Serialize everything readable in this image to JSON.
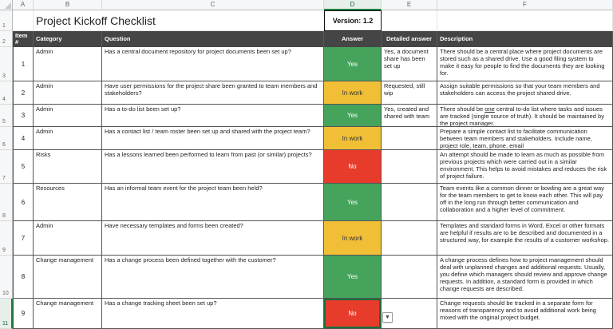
{
  "title": "Project Kickoff Checklist",
  "version_label": "Version: 1.2",
  "column_letters": [
    "A",
    "B",
    "C",
    "D",
    "E",
    "F"
  ],
  "selected_column": "D",
  "row1_number": "1",
  "row2_number": "2",
  "table_header": {
    "item": "Item #",
    "category": "Category",
    "question": "Question",
    "answer": "Answer",
    "detailed": "Detailed answer",
    "description": "Description"
  },
  "answer_colors": {
    "yes": "#46a35c",
    "in_work": "#f1bf35",
    "no": "#e73b2b"
  },
  "selection_color": "#1e7e3e",
  "dropdown_glyph": "▼",
  "rows": [
    {
      "row_num": "3",
      "item": "1",
      "category": "Admin",
      "question": "Has a central document repository for project documents been set up?",
      "answer": "Yes",
      "answer_type": "yes",
      "detailed": "Yes, a document share has been set up",
      "description": "There should be a central place where project documents are stored such as a shared drive. Use a good filing system to make it easy for people to find the documents they are looking for."
    },
    {
      "row_num": "4",
      "item": "2",
      "category": "Admin",
      "question": "Have user permissions for the project share been granted to team members and stakeholders?",
      "answer": "In work",
      "answer_type": "in_work",
      "detailed": "Requested, still wip",
      "description": "Assign suitable permissions so that your team members and stakeholders can access the project shared drive."
    },
    {
      "row_num": "5",
      "item": "3",
      "category": "Admin",
      "question": "Has a to-do list been set up?",
      "answer": "Yes",
      "answer_type": "yes",
      "detailed": "Yes, created and shared with team",
      "description": "There should be one central to-do list where tasks and issues are tracked (single source of truth). It should be maintained by the project manager.",
      "description_underline": "one"
    },
    {
      "row_num": "6",
      "item": "4",
      "category": "Admin",
      "question": "Has a contact list / team roster been set up and shared with the project team?",
      "answer": "In work",
      "answer_type": "in_work",
      "detailed": "",
      "description": "Prepare a simple contact list to facilitate communication between team members and stakeholders. Include name, project role, team, phone, email"
    },
    {
      "row_num": "7",
      "item": "5",
      "category": "Risks",
      "question": "Has a lessons learned been performed to learn from past (or similar) projects?",
      "answer": "No",
      "answer_type": "no",
      "detailed": "",
      "description": "An attempt should be made to learn as much as possible from previous projects which were carried out in a similar environment. This helps to avoid mistakes and reduces the risk of project failure."
    },
    {
      "row_num": "8",
      "item": "6",
      "category": "Resources",
      "question": "Has an informal team event for the project team been held?",
      "answer": "Yes",
      "answer_type": "yes",
      "detailed": "",
      "description": "Team events like a common dinner or bowling are a great way for the team members to get to know each other. This will pay off in the long run through better communication and collaboration and a higher level of commitment."
    },
    {
      "row_num": "9",
      "item": "7",
      "category": "Admin",
      "question": "Have necessary templates and forms been created?",
      "answer": "In work",
      "answer_type": "in_work",
      "detailed": "",
      "description": "Templates and standard forms in Word, Excel or other formats are helpful if results are to be described and documented in a structured way, for example the results of a customer workshop."
    },
    {
      "row_num": "10",
      "item": "8",
      "category": "Change management",
      "question": "Has a change process been defined together with the customer?",
      "answer": "Yes",
      "answer_type": "yes",
      "detailed": "",
      "description": "A change process defines how to project management should deal with unplanned changes and additional requests. Usually, you define which managers should review and approve change requests. In addition, a standard form is provided in which change requests are described."
    },
    {
      "row_num": "11",
      "item": "9",
      "category": "Change management",
      "question": "Has a change tracking sheet been set up?",
      "answer": "No",
      "answer_type": "no",
      "detailed": "",
      "description": "Change requests should be tracked in a separate form for reasons of transparency and to avoid additional work being mixed with the original project budget.",
      "selected": true
    }
  ]
}
